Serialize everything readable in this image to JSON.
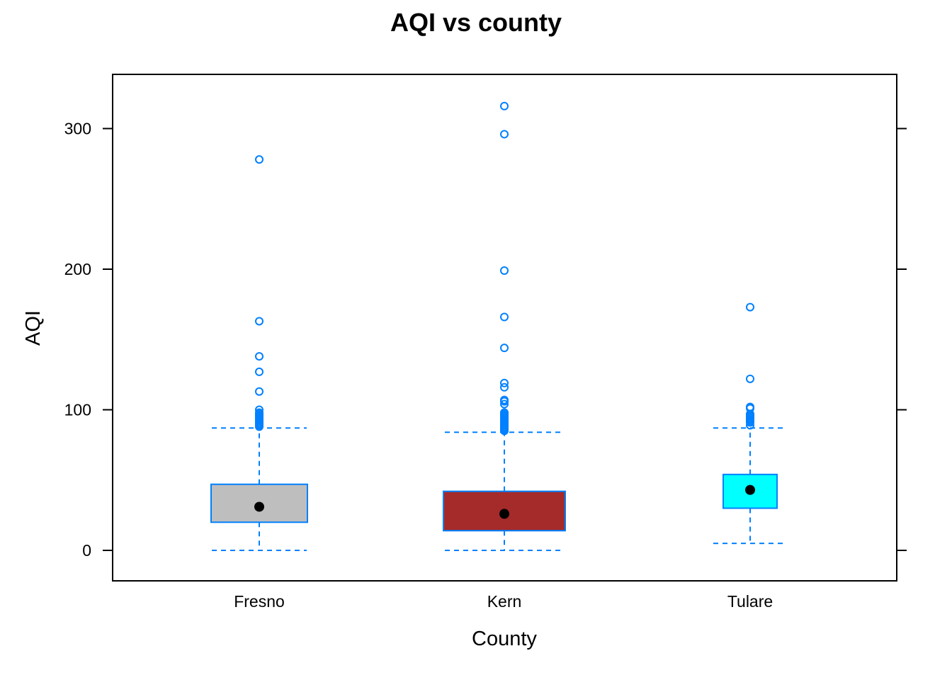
{
  "chart_data": {
    "type": "box",
    "title": "AQI vs county",
    "xlabel": "County",
    "ylabel": "AQI",
    "ylim": [
      -22,
      340
    ],
    "yticks": [
      0,
      100,
      200,
      300
    ],
    "categories": [
      "Fresno",
      "Kern",
      "Tulare"
    ],
    "grid": false,
    "colors": {
      "outline": "#0080ff",
      "median_dot": "#000000",
      "frame": "#000000"
    },
    "boxes": [
      {
        "category": "Fresno",
        "fill": "#bebebe",
        "whisker_low": 0,
        "q1": 20,
        "median": 31,
        "q3": 47,
        "whisker_high": 87,
        "outliers": [
          88,
          89,
          90,
          91,
          92,
          93,
          94,
          95,
          96,
          97,
          98,
          100,
          113,
          127,
          138,
          163,
          278
        ]
      },
      {
        "category": "Kern",
        "fill": "#a52a2a",
        "whisker_low": 0,
        "q1": 14,
        "median": 26,
        "q3": 42,
        "whisker_high": 84,
        "outliers": [
          85,
          86,
          87,
          88,
          89,
          90,
          91,
          92,
          93,
          94,
          95,
          96,
          97,
          98,
          104,
          106,
          107,
          116,
          119,
          144,
          166,
          199,
          296,
          316
        ]
      },
      {
        "category": "Tulare",
        "fill": "#00ffff",
        "whisker_low": 5,
        "q1": 30,
        "median": 43,
        "q3": 54,
        "whisker_high": 87,
        "outliers": [
          89,
          91,
          92,
          93,
          94,
          95,
          96,
          97,
          101,
          102,
          122,
          173
        ]
      }
    ]
  }
}
